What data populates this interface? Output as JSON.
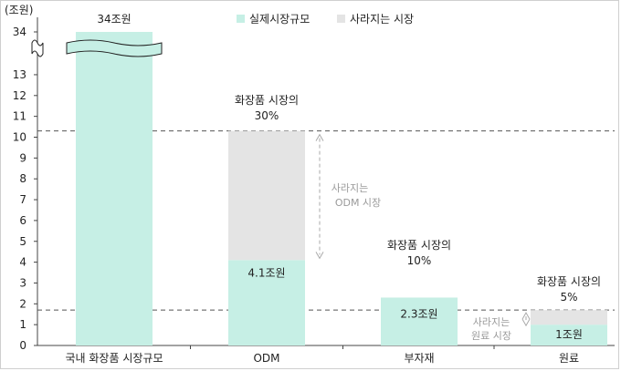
{
  "chart_data": {
    "type": "bar",
    "unit_label": "(조원)",
    "y_ticks": [
      "0",
      "1",
      "2",
      "3",
      "4",
      "5",
      "6",
      "7",
      "8",
      "9",
      "10",
      "11",
      "12",
      "13",
      "34"
    ],
    "y_axis_break": true,
    "grid": false,
    "legend_position": "top",
    "categories": [
      "국내 화장품 시장규모",
      "ODM",
      "부자재",
      "원료"
    ],
    "series": [
      {
        "name": "실제시장규모",
        "color": "#c6efe5",
        "values": [
          34,
          4.1,
          2.3,
          1.0
        ]
      },
      {
        "name": "사라지는 시장",
        "color": "#e4e4e4",
        "values": [
          0,
          6.2,
          0,
          0.7
        ]
      }
    ],
    "bar_labels": [
      "34조원",
      "4.1조원",
      "2.3조원",
      "1조원"
    ],
    "top_annotations": [
      {
        "line1": "",
        "line2": ""
      },
      {
        "line1": "화장품 시장의",
        "line2": "30%"
      },
      {
        "line1": "화장품 시장의",
        "line2": "10%"
      },
      {
        "line1": "화장품 시장의",
        "line2": "5%"
      }
    ],
    "reference_lines": [
      10.3,
      1.7
    ],
    "brace_annotations": [
      {
        "line1": "사라지는",
        "line2": "ODM 시장"
      },
      {
        "line1": "사라지는",
        "line2": "원료 시장"
      }
    ]
  }
}
